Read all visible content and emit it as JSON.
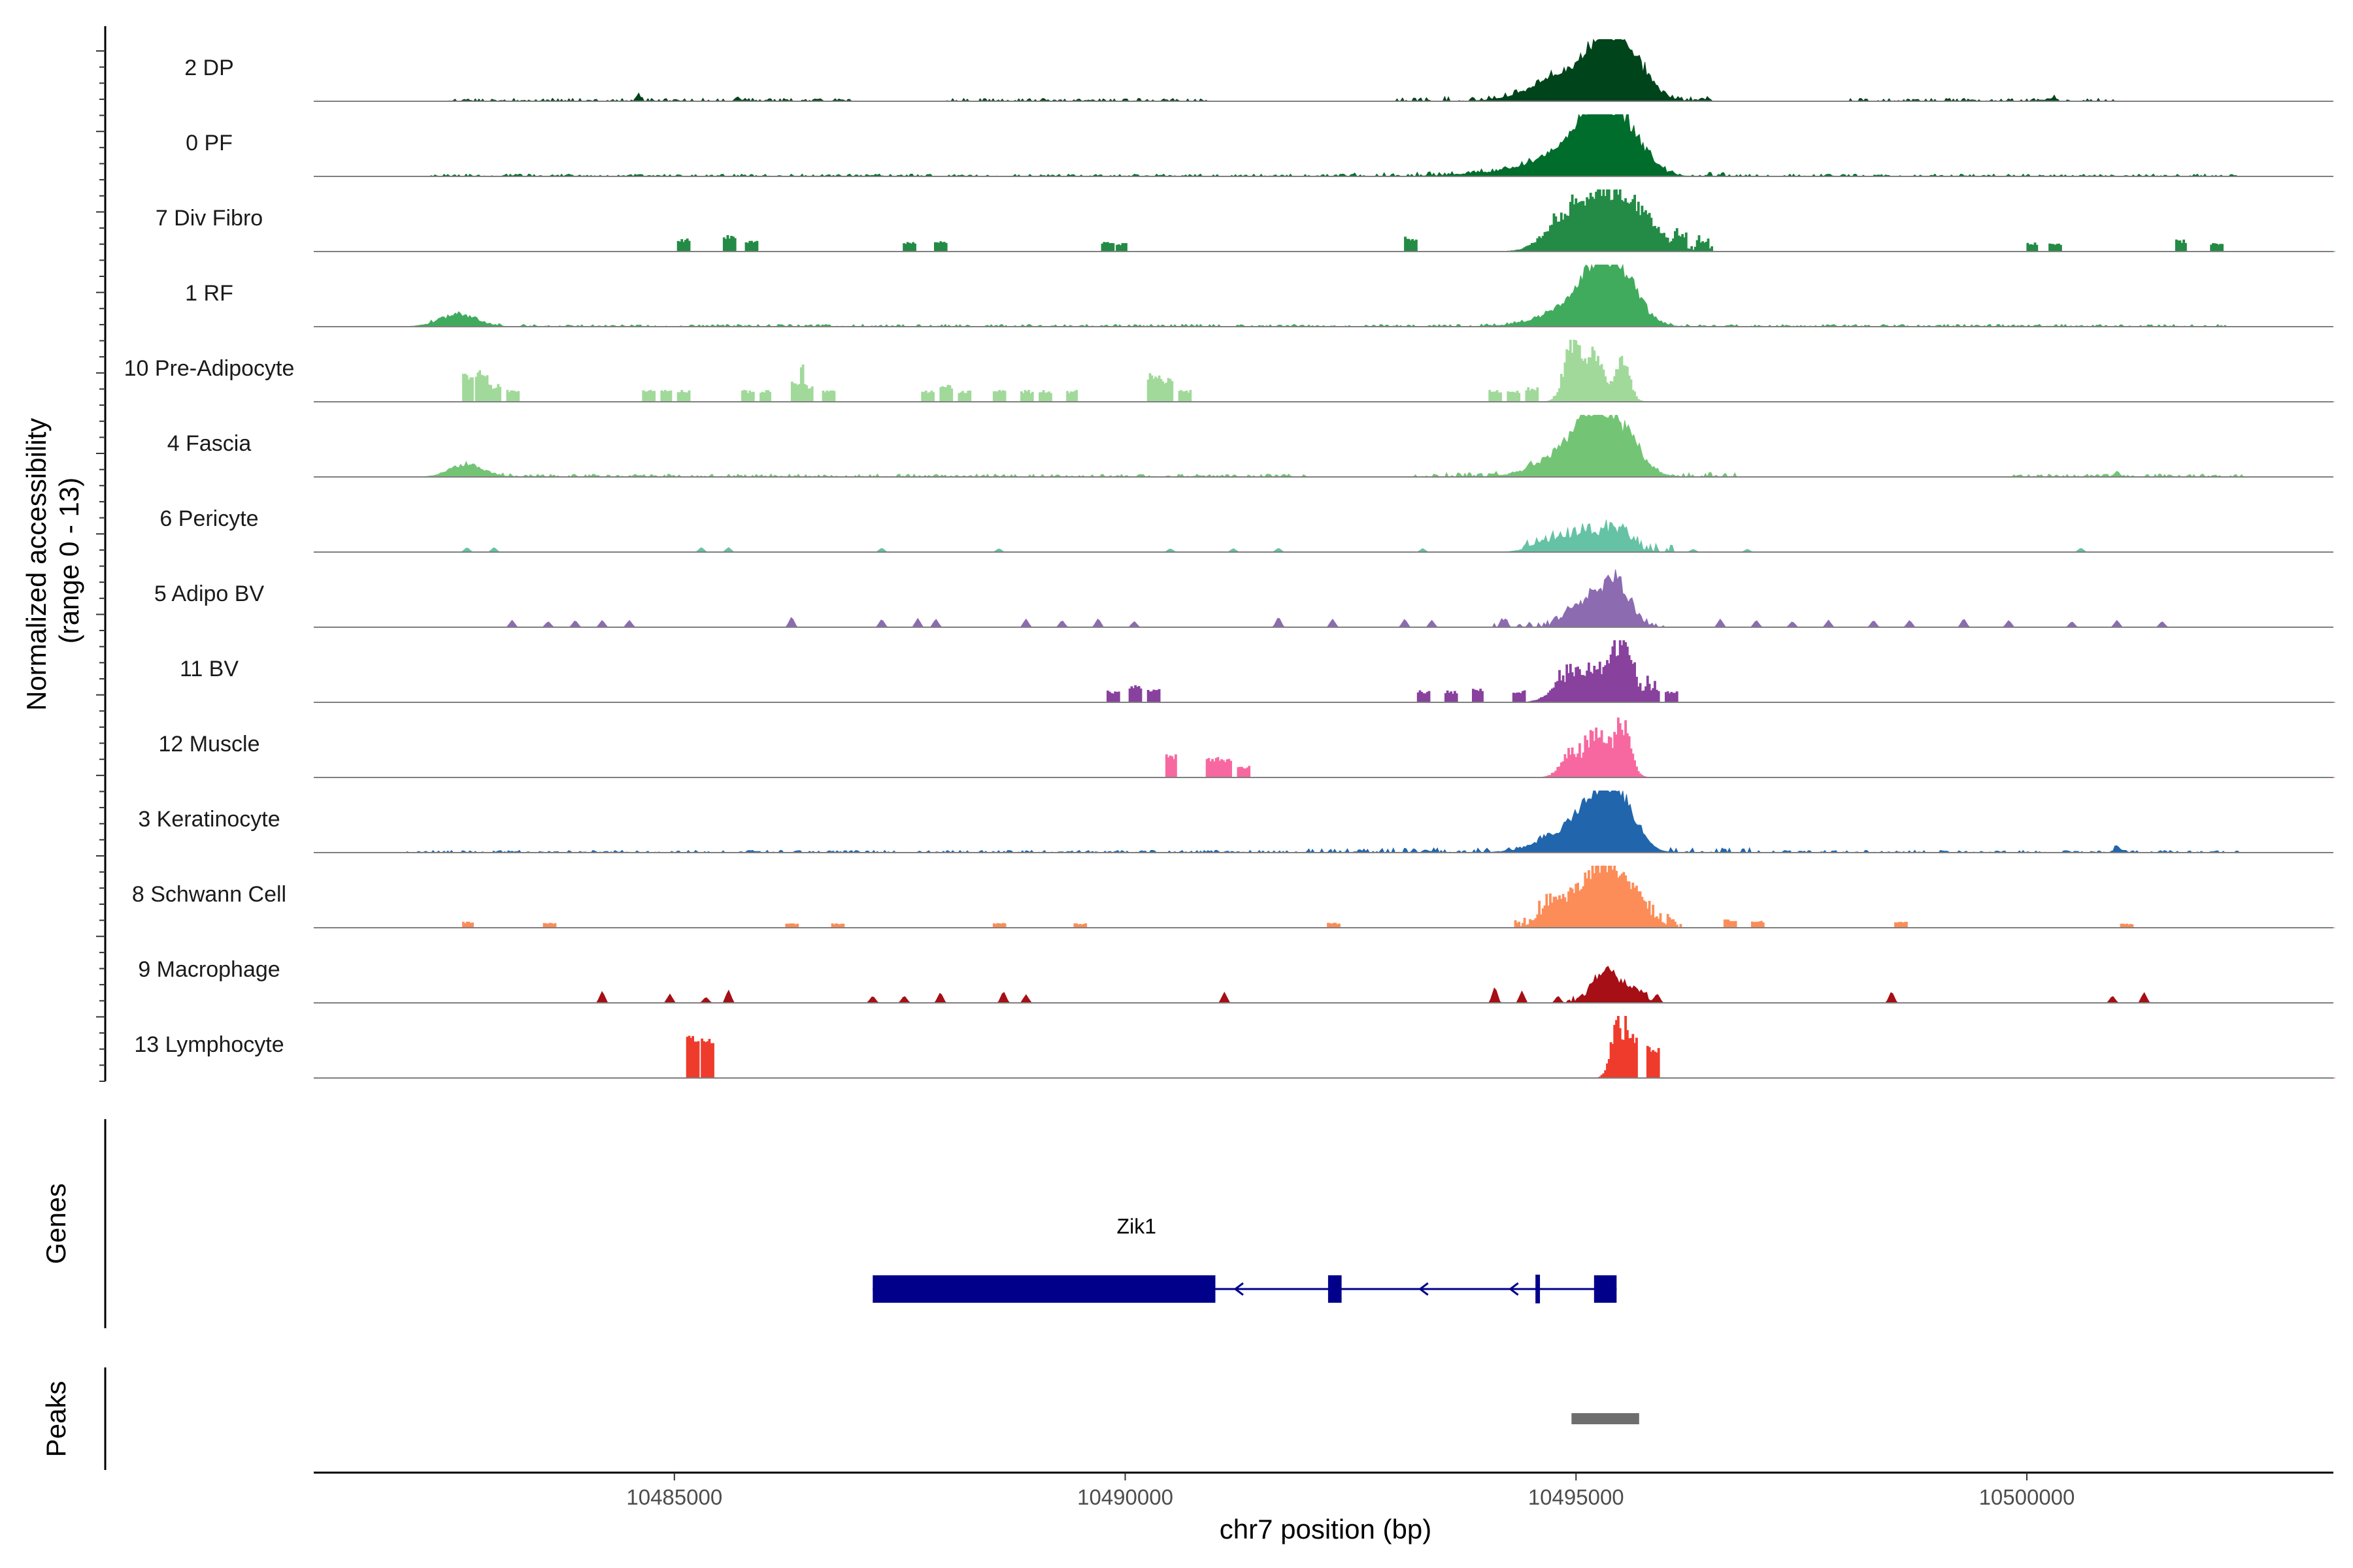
{
  "chart_data": {
    "type": "coverage",
    "chromosome": "chr7",
    "xlabel": "chr7 position (bp)",
    "ylabel_line1": "Normalized accessibility",
    "ylabel_line2": "(range 0 - 13)",
    "x_range": [
      10481000,
      10503400
    ],
    "x_ticks": [
      10485000,
      10490000,
      10495000,
      10500000
    ],
    "x_tick_labels": [
      "10485000",
      "10490000",
      "10495000",
      "10500000"
    ],
    "tracks": [
      {
        "label": "2 DP",
        "color": "#00441b",
        "style": "smooth",
        "peaks": [
          [
            10495450,
            1.0,
            250
          ],
          [
            10495050,
            0.4,
            350
          ],
          [
            10494700,
            0.12,
            350
          ]
        ],
        "noise": [
          [
            10482500,
            10487000,
            0.05
          ],
          [
            10488000,
            10491000,
            0.05
          ],
          [
            10493000,
            10496500,
            0.08
          ],
          [
            10498000,
            10501000,
            0.05
          ]
        ],
        "small": [
          [
            10484600,
            0.12
          ],
          [
            10485700,
            0.08
          ],
          [
            10496400,
            0.06
          ],
          [
            10500300,
            0.07
          ]
        ]
      },
      {
        "label": "0 PF",
        "color": "#006d2c",
        "style": "smooth",
        "peaks": [
          [
            10495450,
            1.0,
            250
          ],
          [
            10495150,
            0.5,
            200
          ],
          [
            10494850,
            0.3,
            300
          ],
          [
            10494400,
            0.08,
            500
          ]
        ],
        "noise": [
          [
            10482300,
            10492500,
            0.04
          ],
          [
            10492500,
            10496800,
            0.07
          ],
          [
            10496800,
            10502400,
            0.04
          ]
        ],
        "small": []
      },
      {
        "label": "7 Div Fibro",
        "color": "#238b45",
        "style": "blocky",
        "peaks": [
          [
            10495500,
            0.85,
            300
          ],
          [
            10495100,
            0.45,
            250
          ],
          [
            10494800,
            0.3,
            200
          ]
        ],
        "noise": [
          [
            10494700,
            10496500,
            0.1
          ]
        ],
        "small": [
          [
            10485100,
            0.22
          ],
          [
            10485600,
            0.28
          ],
          [
            10485850,
            0.18
          ],
          [
            10487600,
            0.17
          ],
          [
            10487950,
            0.2
          ],
          [
            10489800,
            0.17
          ],
          [
            10489950,
            0.14
          ],
          [
            10493150,
            0.25
          ],
          [
            10496150,
            0.2
          ],
          [
            10496400,
            0.18
          ],
          [
            10500050,
            0.15
          ],
          [
            10500300,
            0.15
          ],
          [
            10501700,
            0.2
          ],
          [
            10502100,
            0.14
          ]
        ]
      },
      {
        "label": "1 RF",
        "color": "#41ab5d",
        "style": "smooth",
        "peaks": [
          [
            10495450,
            0.95,
            220
          ],
          [
            10495150,
            0.55,
            200
          ],
          [
            10494800,
            0.2,
            300
          ],
          [
            10482600,
            0.2,
            200
          ]
        ],
        "noise": [
          [
            10482300,
            10502200,
            0.04
          ]
        ],
        "small": []
      },
      {
        "label": "10 Pre-Adipocyte",
        "color": "#a1d99b",
        "style": "blocky",
        "peaks": [
          [
            10494950,
            1.0,
            90
          ],
          [
            10495200,
            0.8,
            90
          ],
          [
            10495500,
            0.7,
            80
          ]
        ],
        "noise": [],
        "small": [
          [
            10482700,
            0.5
          ],
          [
            10482850,
            0.55
          ],
          [
            10483000,
            0.3
          ],
          [
            10483200,
            0.2
          ],
          [
            10484700,
            0.2
          ],
          [
            10484900,
            0.2
          ],
          [
            10485100,
            0.2
          ],
          [
            10485800,
            0.2
          ],
          [
            10486000,
            0.2
          ],
          [
            10486350,
            0.35
          ],
          [
            10486450,
            0.3
          ],
          [
            10486700,
            0.2
          ],
          [
            10487800,
            0.2
          ],
          [
            10488000,
            0.3
          ],
          [
            10488200,
            0.2
          ],
          [
            10488600,
            0.2
          ],
          [
            10488900,
            0.2
          ],
          [
            10489100,
            0.2
          ],
          [
            10489400,
            0.2
          ],
          [
            10490300,
            0.5
          ],
          [
            10490450,
            0.4
          ],
          [
            10490650,
            0.2
          ],
          [
            10494100,
            0.2
          ],
          [
            10494300,
            0.2
          ],
          [
            10494500,
            0.25
          ]
        ]
      },
      {
        "label": "4 Fascia",
        "color": "#74c476",
        "style": "smooth",
        "peaks": [
          [
            10495450,
            0.85,
            220
          ],
          [
            10495100,
            0.65,
            200
          ],
          [
            10494800,
            0.25,
            300
          ],
          [
            10482700,
            0.22,
            180
          ]
        ],
        "noise": [
          [
            10483000,
            10492000,
            0.05
          ],
          [
            10493200,
            10496800,
            0.08
          ],
          [
            10499800,
            10502400,
            0.05
          ]
        ],
        "small": [
          [
            10501000,
            0.1
          ]
        ]
      },
      {
        "label": "6 Pericyte",
        "color": "#66c2a4",
        "style": "smooth",
        "peaks": [
          [
            10495450,
            0.35,
            150
          ],
          [
            10495100,
            0.25,
            150
          ],
          [
            10494750,
            0.2,
            200
          ]
        ],
        "noise": [
          [
            10494400,
            10496100,
            0.15
          ]
        ],
        "small": [
          [
            10482700,
            0.08
          ],
          [
            10483000,
            0.08
          ],
          [
            10485300,
            0.08
          ],
          [
            10485600,
            0.08
          ],
          [
            10487300,
            0.07
          ],
          [
            10488600,
            0.06
          ],
          [
            10490500,
            0.06
          ],
          [
            10491200,
            0.06
          ],
          [
            10491700,
            0.07
          ],
          [
            10493300,
            0.06
          ],
          [
            10496300,
            0.05
          ],
          [
            10496900,
            0.05
          ],
          [
            10500600,
            0.07
          ]
        ]
      },
      {
        "label": "5 Adipo BV",
        "color": "#8c6bb1",
        "style": "smooth",
        "peaks": [
          [
            10495450,
            0.75,
            150
          ],
          [
            10495150,
            0.4,
            150
          ],
          [
            10494900,
            0.15,
            100
          ]
        ],
        "noise": [
          [
            10494000,
            10496000,
            0.1
          ]
        ],
        "small": [
          [
            10483200,
            0.12
          ],
          [
            10483600,
            0.1
          ],
          [
            10483900,
            0.12
          ],
          [
            10484200,
            0.12
          ],
          [
            10484500,
            0.12
          ],
          [
            10486300,
            0.18
          ],
          [
            10487300,
            0.14
          ],
          [
            10487700,
            0.15
          ],
          [
            10487900,
            0.14
          ],
          [
            10488900,
            0.14
          ],
          [
            10489300,
            0.12
          ],
          [
            10489700,
            0.15
          ],
          [
            10490100,
            0.1
          ],
          [
            10491700,
            0.18
          ],
          [
            10492300,
            0.14
          ],
          [
            10493100,
            0.14
          ],
          [
            10493400,
            0.12
          ],
          [
            10494200,
            0.12
          ],
          [
            10496600,
            0.14
          ],
          [
            10497000,
            0.12
          ],
          [
            10497400,
            0.1
          ],
          [
            10497800,
            0.12
          ],
          [
            10498300,
            0.12
          ],
          [
            10498700,
            0.12
          ],
          [
            10499300,
            0.15
          ],
          [
            10499800,
            0.12
          ],
          [
            10500500,
            0.1
          ],
          [
            10501000,
            0.12
          ],
          [
            10501500,
            0.1
          ]
        ]
      },
      {
        "label": "11 BV",
        "color": "#88419d",
        "style": "blocky",
        "peaks": [
          [
            10495500,
            0.85,
            120
          ],
          [
            10495150,
            0.45,
            200
          ],
          [
            10494850,
            0.25,
            150
          ]
        ],
        "noise": [
          [
            10494750,
            10495900,
            0.22
          ]
        ],
        "small": [
          [
            10489850,
            0.2
          ],
          [
            10490100,
            0.3
          ],
          [
            10490300,
            0.25
          ],
          [
            10493300,
            0.2
          ],
          [
            10493600,
            0.2
          ],
          [
            10493900,
            0.25
          ],
          [
            10494350,
            0.2
          ],
          [
            10495850,
            0.2
          ],
          [
            10496050,
            0.2
          ]
        ]
      },
      {
        "label": "12 Muscle",
        "color": "#f768a1",
        "style": "blocky",
        "peaks": [
          [
            10495500,
            0.85,
            90
          ],
          [
            10495200,
            0.65,
            120
          ],
          [
            10494900,
            0.3,
            100
          ]
        ],
        "noise": [
          [
            10494850,
            10495650,
            0.2
          ]
        ],
        "small": [
          [
            10490500,
            0.4
          ],
          [
            10490950,
            0.35
          ],
          [
            10491100,
            0.35
          ],
          [
            10491300,
            0.2
          ]
        ]
      },
      {
        "label": "3 Keratinocyte",
        "color": "#2166ac",
        "style": "smooth",
        "peaks": [
          [
            10495450,
            0.9,
            200
          ],
          [
            10495150,
            0.5,
            200
          ],
          [
            10494850,
            0.25,
            300
          ]
        ],
        "noise": [
          [
            10482000,
            10492000,
            0.04
          ],
          [
            10492000,
            10497000,
            0.08
          ],
          [
            10497000,
            10502400,
            0.04
          ]
        ],
        "small": [
          [
            10501000,
            0.12
          ]
        ]
      },
      {
        "label": "8 Schwann Cell",
        "color": "#fc8d59",
        "style": "blocky",
        "peaks": [
          [
            10495200,
            0.9,
            200
          ],
          [
            10495550,
            0.6,
            200
          ],
          [
            10494750,
            0.4,
            150
          ]
        ],
        "noise": [
          [
            10494300,
            10496200,
            0.2
          ]
        ],
        "small": [
          [
            10482700,
            0.1
          ],
          [
            10483600,
            0.08
          ],
          [
            10486300,
            0.07
          ],
          [
            10486800,
            0.07
          ],
          [
            10488600,
            0.08
          ],
          [
            10489500,
            0.07
          ],
          [
            10492300,
            0.08
          ],
          [
            10496700,
            0.15
          ],
          [
            10497000,
            0.12
          ],
          [
            10498600,
            0.1
          ],
          [
            10501100,
            0.07
          ]
        ]
      },
      {
        "label": "9 Macrophage",
        "color": "#a50f15",
        "style": "smooth",
        "peaks": [
          [
            10495300,
            0.55,
            120
          ],
          [
            10495600,
            0.25,
            120
          ]
        ],
        "noise": [
          [
            10494900,
            10495800,
            0.1
          ]
        ],
        "small": [
          [
            10484200,
            0.2
          ],
          [
            10484950,
            0.15
          ],
          [
            10485350,
            0.1
          ],
          [
            10485600,
            0.22
          ],
          [
            10487200,
            0.12
          ],
          [
            10487550,
            0.12
          ],
          [
            10487950,
            0.18
          ],
          [
            10488650,
            0.2
          ],
          [
            10488900,
            0.14
          ],
          [
            10491100,
            0.18
          ],
          [
            10494100,
            0.28
          ],
          [
            10494400,
            0.2
          ],
          [
            10494800,
            0.12
          ],
          [
            10495900,
            0.15
          ],
          [
            10498500,
            0.2
          ],
          [
            10500950,
            0.12
          ],
          [
            10501300,
            0.18
          ]
        ]
      },
      {
        "label": "13 Lymphocyte",
        "color": "#ef3b2c",
        "style": "blocky",
        "peaks": [
          [
            10495450,
            0.95,
            70
          ]
        ],
        "noise": [],
        "small": [
          [
            10485200,
            0.75
          ],
          [
            10485350,
            0.75
          ],
          [
            10495600,
            0.7
          ],
          [
            10495850,
            0.55
          ]
        ]
      }
    ],
    "gene": {
      "name": "Zik1",
      "strand": "-",
      "exons": [
        [
          10487200,
          10491000,
          "thick"
        ],
        [
          10492250,
          10492400,
          "thick"
        ],
        [
          10494550,
          10494600,
          "thin"
        ],
        [
          10495200,
          10495450,
          "thick"
        ]
      ],
      "arrows": [
        10491250,
        10493300,
        10494300
      ]
    },
    "peaks_track": [
      [
        10494950,
        10495700
      ]
    ],
    "panel_titles": {
      "genes": "Genes",
      "peaks": "Peaks"
    }
  }
}
